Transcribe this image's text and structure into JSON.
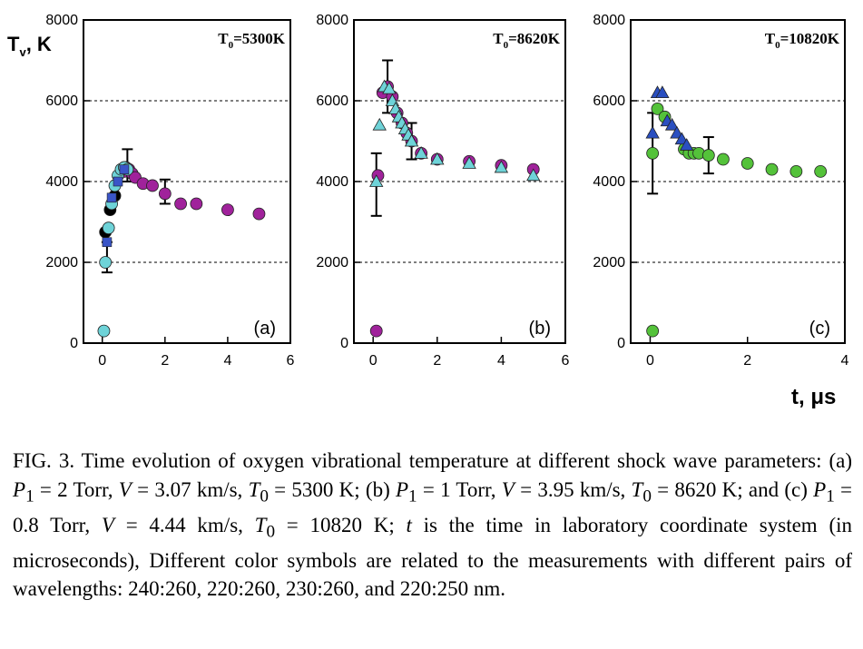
{
  "chart_data": [
    {
      "type": "scatter",
      "panel_label": "(a)",
      "annotation": "T0=5300K",
      "annotation_main": "T",
      "annotation_sub": "0",
      "annotation_rest": "=5300K",
      "xlim": [
        -0.6,
        6
      ],
      "ylim": [
        0,
        8000
      ],
      "xticks": [
        "0",
        "2",
        "4",
        "6"
      ],
      "yticks": [
        "0",
        "2000",
        "4000",
        "6000",
        "8000"
      ],
      "dashed_gridlines": [
        2000,
        4000,
        6000
      ],
      "series": [
        {
          "color": "#a0229b",
          "marker": "circle",
          "x": [
            0.7,
            0.75,
            0.85,
            0.95,
            1.05,
            1.3,
            1.6,
            2.0,
            2.5,
            3.0,
            4.0,
            5.0
          ],
          "y": [
            4250,
            4350,
            4300,
            4200,
            4100,
            3950,
            3900,
            3700,
            3450,
            3450,
            3300,
            3200
          ]
        },
        {
          "color": "#000000",
          "marker": "circle",
          "x": [
            0.1,
            0.25,
            0.4
          ],
          "y": [
            2750,
            3300,
            3650
          ]
        },
        {
          "color": "#6ed3d8",
          "marker": "circle",
          "x": [
            0.05,
            0.1,
            0.2,
            0.3,
            0.4,
            0.5,
            0.6,
            0.7,
            0.8
          ],
          "y": [
            300,
            2000,
            2850,
            3450,
            3900,
            4150,
            4300,
            4350,
            4300
          ]
        },
        {
          "color": "#3a55c8",
          "marker": "square",
          "x": [
            0.15,
            0.3,
            0.5,
            0.7
          ],
          "y": [
            2500,
            3600,
            4000,
            4300
          ]
        }
      ],
      "error_bars": [
        {
          "x": 0.15,
          "y": 2200,
          "low": 1750,
          "high": 2500
        },
        {
          "x": 0.8,
          "y": 4350,
          "low": 4000,
          "high": 4800
        },
        {
          "x": 2.0,
          "y": 3700,
          "low": 3450,
          "high": 4050
        }
      ]
    },
    {
      "type": "scatter",
      "panel_label": "(b)",
      "annotation": "T0=8620K",
      "annotation_main": "T",
      "annotation_sub": "0",
      "annotation_rest": "=8620K",
      "xlim": [
        -0.6,
        6
      ],
      "ylim": [
        0,
        8000
      ],
      "xticks": [
        "0",
        "2",
        "4",
        "6"
      ],
      "yticks": [
        "0",
        "2000",
        "4000",
        "6000",
        "8000"
      ],
      "dashed_gridlines": [
        2000,
        4000,
        6000
      ],
      "series": [
        {
          "color": "#a0229b",
          "marker": "circle",
          "x": [
            0.1,
            0.15,
            0.3,
            0.45,
            0.6,
            0.75,
            0.9,
            1.05,
            1.2,
            1.5,
            2.0,
            3.0,
            4.0,
            5.0
          ],
          "y": [
            300,
            4150,
            6200,
            6350,
            6100,
            5700,
            5450,
            5200,
            5000,
            4700,
            4550,
            4500,
            4400,
            4300
          ]
        },
        {
          "color": "#6ed3d8",
          "marker": "triangle",
          "x": [
            0.1,
            0.2,
            0.35,
            0.5,
            0.6,
            0.7,
            0.8,
            0.9,
            1.0,
            1.1,
            1.2,
            1.5,
            2.0,
            3.0,
            4.0,
            5.0
          ],
          "y": [
            4000,
            5400,
            6350,
            6300,
            6000,
            5800,
            5600,
            5450,
            5300,
            5150,
            5000,
            4700,
            4550,
            4450,
            4350,
            4150
          ]
        }
      ],
      "error_bars": [
        {
          "x": 0.1,
          "y": 3950,
          "low": 3150,
          "high": 4700
        },
        {
          "x": 0.45,
          "y": 6350,
          "low": 5700,
          "high": 7000
        },
        {
          "x": 1.2,
          "y": 5000,
          "low": 4550,
          "high": 5450
        }
      ]
    },
    {
      "type": "scatter",
      "panel_label": "(c)",
      "annotation": "T0=10820K",
      "annotation_main": "T",
      "annotation_sub": "0",
      "annotation_rest": "=10820K",
      "xlim": [
        -0.4,
        4
      ],
      "ylim": [
        0,
        8000
      ],
      "xticks": [
        "0",
        "2",
        "4"
      ],
      "yticks": [
        "0",
        "2000",
        "4000",
        "6000",
        "8000"
      ],
      "dashed_gridlines": [
        2000,
        4000,
        6000
      ],
      "series": [
        {
          "color": "#54c23a",
          "marker": "circle",
          "x": [
            0.05,
            0.05,
            0.15,
            0.3,
            0.7,
            0.8,
            0.9,
            1.0,
            1.2,
            1.5,
            2.0,
            2.5,
            3.0,
            3.5
          ],
          "y": [
            300,
            4700,
            5800,
            5600,
            4800,
            4700,
            4700,
            4700,
            4650,
            4550,
            4450,
            4300,
            4250,
            4250
          ]
        },
        {
          "color": "#2a4fc0",
          "marker": "triangle",
          "x": [
            0.05,
            0.15,
            0.25,
            0.35,
            0.45,
            0.55,
            0.65,
            0.75
          ],
          "y": [
            5200,
            6200,
            6200,
            5500,
            5400,
            5200,
            5050,
            4900
          ]
        }
      ],
      "error_bars": [
        {
          "x": 0.05,
          "y": 4700,
          "low": 3700,
          "high": 5700
        },
        {
          "x": 1.2,
          "y": 4650,
          "low": 4200,
          "high": 5100
        }
      ]
    }
  ],
  "axis_label_y_main": "T",
  "axis_label_y_sub": "v",
  "axis_label_y_rest": ", K",
  "axis_label_x": "t, μs",
  "caption": {
    "fig": "FIG. 3.",
    "text_1": " Time evolution of oxygen vibrational temperature at different shock wave parameters: (a) ",
    "p_sym": "P",
    "p_sub": "1",
    "v_sym": "V",
    "t_sym": "T",
    "t_sub": "0",
    "a_p": " = 2 Torr, ",
    "a_v": " = 3.07 km/s, ",
    "a_t": " = 5300 K; (b) ",
    "b_p": " = 1 Torr, ",
    "b_v": " = 3.95 km/s, ",
    "b_t": " = 8620 K; and (c) ",
    "c_p": " = 0.8 Torr, ",
    "c_v": " = 4.44 km/s, ",
    "c_t": " = 10820 K; ",
    "t_var": "t",
    "tail": " is the time in laboratory coordinate system (in microseconds), Different color symbols are related to the measurements with different pairs of wavelengths: 240:260, 220:260, 230:260, and 220:250 nm."
  }
}
